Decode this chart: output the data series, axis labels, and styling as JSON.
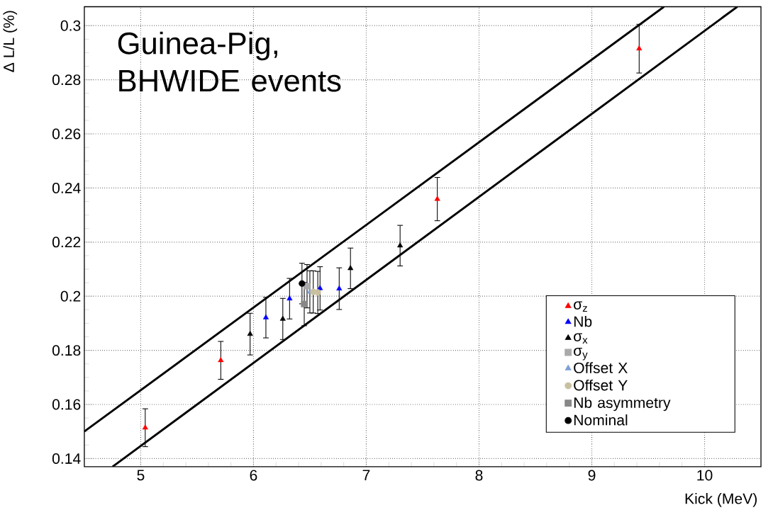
{
  "chart_data": {
    "type": "scatter",
    "xlabel": "Kick (MeV)",
    "ylabel": "Δ L/L (%)",
    "annotations": [
      "Guinea-Pig, BHWIDE events"
    ],
    "xlim": [
      4.5,
      10.5
    ],
    "ylim": [
      0.137,
      0.307
    ],
    "xticks": [
      5,
      6,
      7,
      8,
      9,
      10
    ],
    "yticks": [
      0.14,
      0.16,
      0.18,
      0.2,
      0.22,
      0.24,
      0.26,
      0.28,
      0.3
    ],
    "grid": true,
    "legend": "bottom right",
    "series": [
      {
        "type": "line",
        "color": "#000000",
        "marker": "none",
        "x": [
          4.5,
          9.64
        ],
        "values": [
          0.15,
          0.307
        ]
      },
      {
        "type": "line",
        "color": "#000000",
        "marker": "none",
        "x": [
          4.75,
          10.29
        ],
        "values": [
          0.137,
          0.307
        ]
      },
      {
        "name": "σ$_{z}$",
        "color": "#ff0000",
        "marker": "triangle",
        "x": [
          5.04,
          5.71,
          7.63,
          9.42
        ],
        "values": [
          0.1514,
          0.1763,
          0.2359,
          0.2915
        ],
        "errors": [
          0.007,
          0.007,
          0.008,
          0.009
        ]
      },
      {
        "name": "Nb",
        "color": "#0000ff",
        "marker": "triangle",
        "x": [
          6.11,
          6.32,
          6.59,
          6.76
        ],
        "values": [
          0.1921,
          0.1991,
          0.2029,
          0.2028
        ],
        "errors": [
          0.0075,
          0.0075,
          0.008,
          0.0077
        ]
      },
      {
        "name": "σ$_{x}$",
        "color": "#000000",
        "marker": "triangle",
        "x": [
          5.97,
          6.26,
          6.86,
          7.3
        ],
        "values": [
          0.186,
          0.1916,
          0.2103,
          0.2187
        ],
        "errors": [
          0.0077,
          0.0076,
          0.0075,
          0.0075
        ]
      },
      {
        "name": "σ$_{y}$",
        "color": "#aaaaaa",
        "marker": "square",
        "x": [
          6.475
        ],
        "values": [
          0.2037
        ],
        "errors": [
          0.008
        ]
      },
      {
        "name": "Offset X",
        "color": "#7f9fd6",
        "marker": "triangle",
        "x": [
          6.5
        ],
        "values": [
          0.2016
        ],
        "errors": [
          0.0078
        ]
      },
      {
        "name": "Offset Y",
        "color": "#c8c0a0",
        "marker": "circle",
        "x": [
          6.53,
          6.57
        ],
        "values": [
          0.2016,
          0.2014
        ],
        "errors": [
          0.0078,
          0.0078
        ]
      },
      {
        "name": "Nb asymmetry",
        "color": "#888888",
        "marker": "square",
        "x": [
          6.45
        ],
        "values": [
          0.1971
        ],
        "errors": [
          0.008
        ]
      },
      {
        "name": "Nominal",
        "color": "#000000",
        "marker": "circle",
        "x": [
          6.43
        ],
        "values": [
          0.2047
        ],
        "errors": [
          0.0075
        ]
      }
    ]
  }
}
